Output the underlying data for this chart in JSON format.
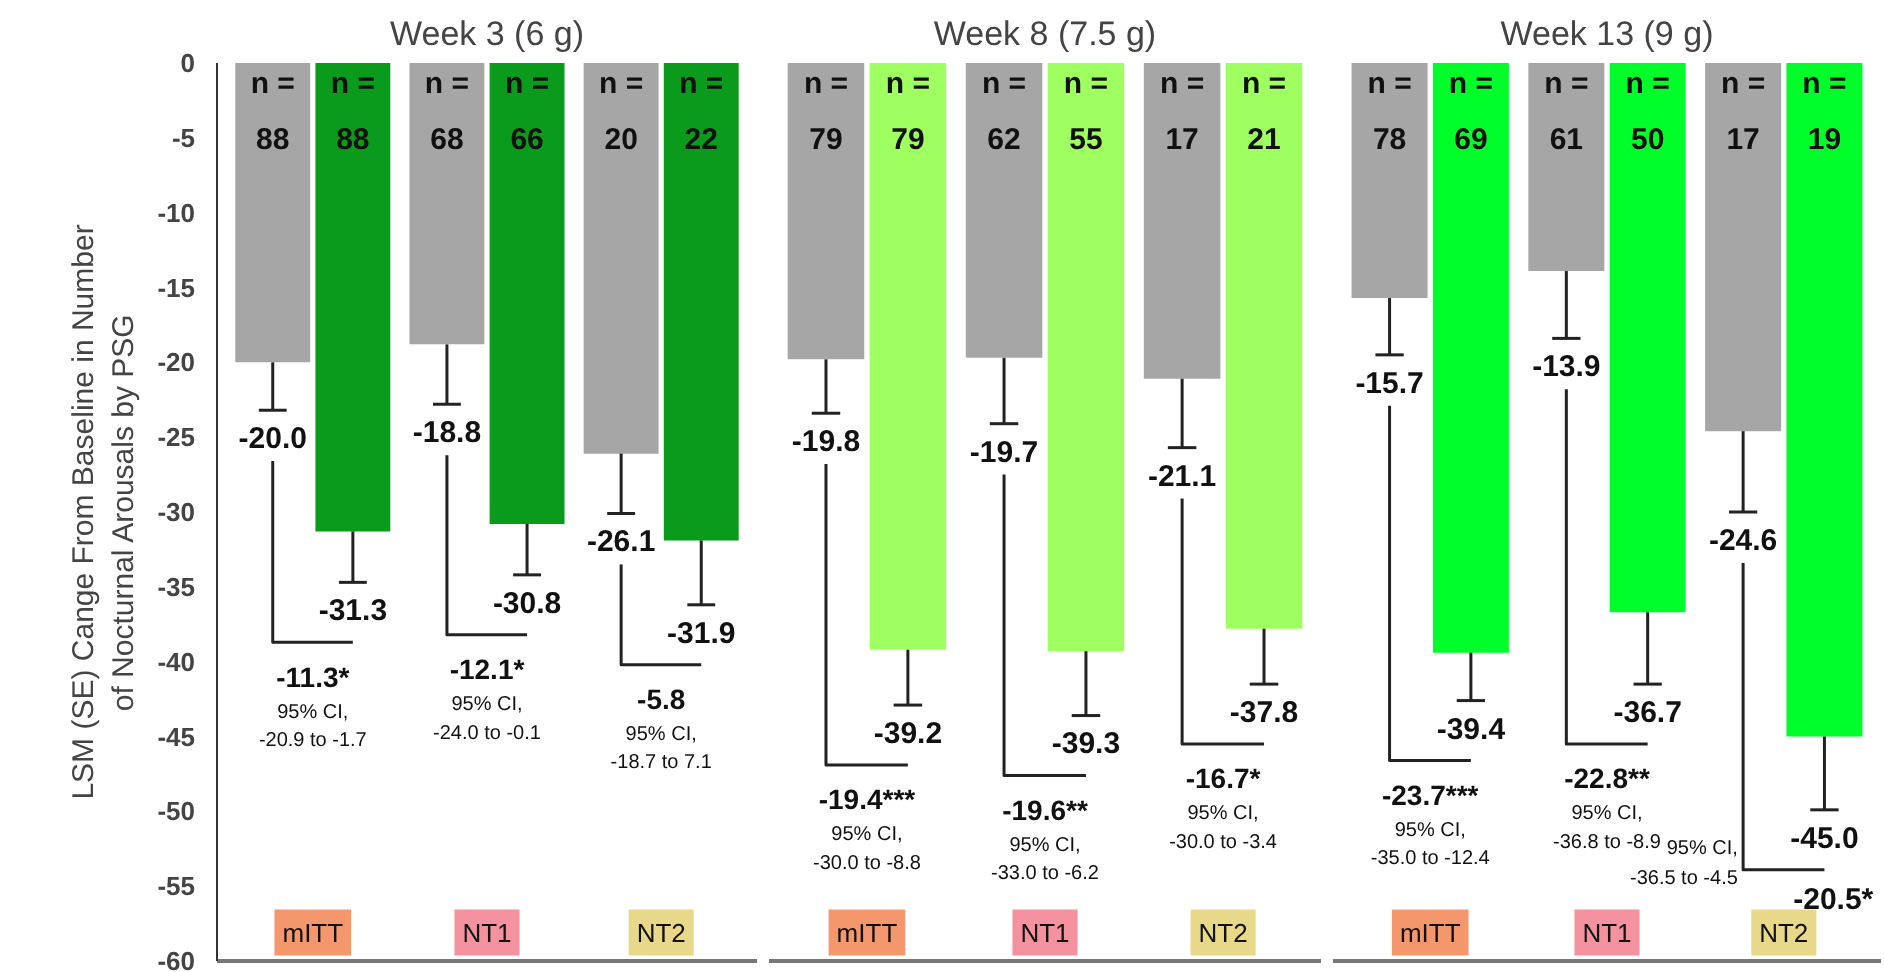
{
  "chart_data": [
    {
      "type": "bar",
      "title": "Week 3 (6 g)",
      "ylabel": "LSM (SE) Cange From Baseline in Number of Nocturnal Arousals by PSG",
      "categories": [
        "mITT",
        "NT1",
        "NT2"
      ],
      "ylim": [
        -60,
        0
      ],
      "yticks": [
        0,
        -5,
        -10,
        -15,
        -20,
        -25,
        -30,
        -35,
        -40,
        -45,
        -50,
        -55,
        -60
      ],
      "tick_labels": "y",
      "series": [
        {
          "color": "#a6a6a6",
          "values": [
            -20.0,
            -18.8,
            -26.1
          ],
          "value_labels": [
            "-20.0",
            "-18.8",
            "-26.1"
          ],
          "errors": [
            [
              -23.2,
              -20.0
            ],
            [
              -22.8,
              -18.8
            ],
            [
              -30.1,
              -26.1
            ]
          ]
        },
        {
          "color": "#0a9a1c",
          "values": [
            -31.3,
            -30.8,
            -31.9
          ],
          "value_labels": [
            "-31.3",
            "-30.8",
            "-31.9"
          ],
          "errors": [
            [
              -34.7,
              -31.3
            ],
            [
              -34.2,
              -30.8
            ],
            [
              -36.2,
              -31.9
            ]
          ]
        }
      ],
      "annotations": [
        "n = 88",
        "n = 88",
        "n = 68",
        "n = 66",
        "n = 20",
        "n = 22",
        "-11.3*",
        "-12.1*",
        "-5.8",
        "95% CI, -20.9 to -1.7",
        "95% CI, -24.0 to -0.1",
        "95% CI, -18.7 to 7.1"
      ]
    },
    {
      "type": "bar",
      "title": "Week 8 (7.5 g)",
      "categories": [
        "mITT",
        "NT1",
        "NT2"
      ],
      "ylim": [
        -60,
        0
      ],
      "tick_labels": false,
      "series": [
        {
          "color": "#a6a6a6",
          "values": [
            -19.8,
            -19.7,
            -21.1
          ],
          "value_labels": [
            "-19.8",
            "-19.7",
            "-21.1"
          ],
          "errors": [
            [
              -23.4,
              -19.8
            ],
            [
              -24.1,
              -19.7
            ],
            [
              -25.7,
              -21.1
            ]
          ]
        },
        {
          "color": "#a0ff60",
          "values": [
            -39.2,
            -39.3,
            -37.8
          ],
          "value_labels": [
            "-39.2",
            "-39.3",
            "-37.8"
          ],
          "errors": [
            [
              -42.9,
              -39.2
            ],
            [
              -43.6,
              -39.3
            ],
            [
              -41.5,
              -37.8
            ]
          ]
        }
      ],
      "annotations": [
        "n = 79",
        "n = 79",
        "n = 62",
        "n = 55",
        "n = 17",
        "n = 21",
        "-19.4***",
        "-19.6**",
        "-16.7*",
        "95% CI, -30.0 to -8.8",
        "95% CI, -33.0 to -6.2",
        "95% CI, -30.0 to -3.4"
      ]
    },
    {
      "type": "bar",
      "title": "Week 13 (9 g)",
      "categories": [
        "mITT",
        "NT1",
        "NT2"
      ],
      "ylim": [
        -60,
        0
      ],
      "tick_labels": false,
      "series": [
        {
          "color": "#a6a6a6",
          "values": [
            -15.7,
            -13.9,
            -24.6
          ],
          "value_labels": [
            "-15.7",
            "-13.9",
            "-24.6"
          ],
          "errors": [
            [
              -19.5,
              -15.7
            ],
            [
              -18.4,
              -13.9
            ],
            [
              -30.0,
              -24.6
            ]
          ]
        },
        {
          "color": "#00ff2a",
          "values": [
            -39.4,
            -36.7,
            -45.0
          ],
          "value_labels": [
            "-39.4",
            "-36.7",
            "-45.0"
          ],
          "errors": [
            [
              -42.6,
              -39.4
            ],
            [
              -41.5,
              -36.7
            ],
            [
              -49.9,
              -45.0
            ]
          ]
        }
      ],
      "annotations": [
        "n = 78",
        "n = 69",
        "n = 61",
        "n = 50",
        "n = 17",
        "n = 19",
        "-23.7***",
        "-22.8**",
        "-20.5*",
        "95% CI, -35.0 to -12.4",
        "95% CI, -36.8 to -8.9",
        "95% CI, -36.5 to -4.5"
      ]
    }
  ]
}
